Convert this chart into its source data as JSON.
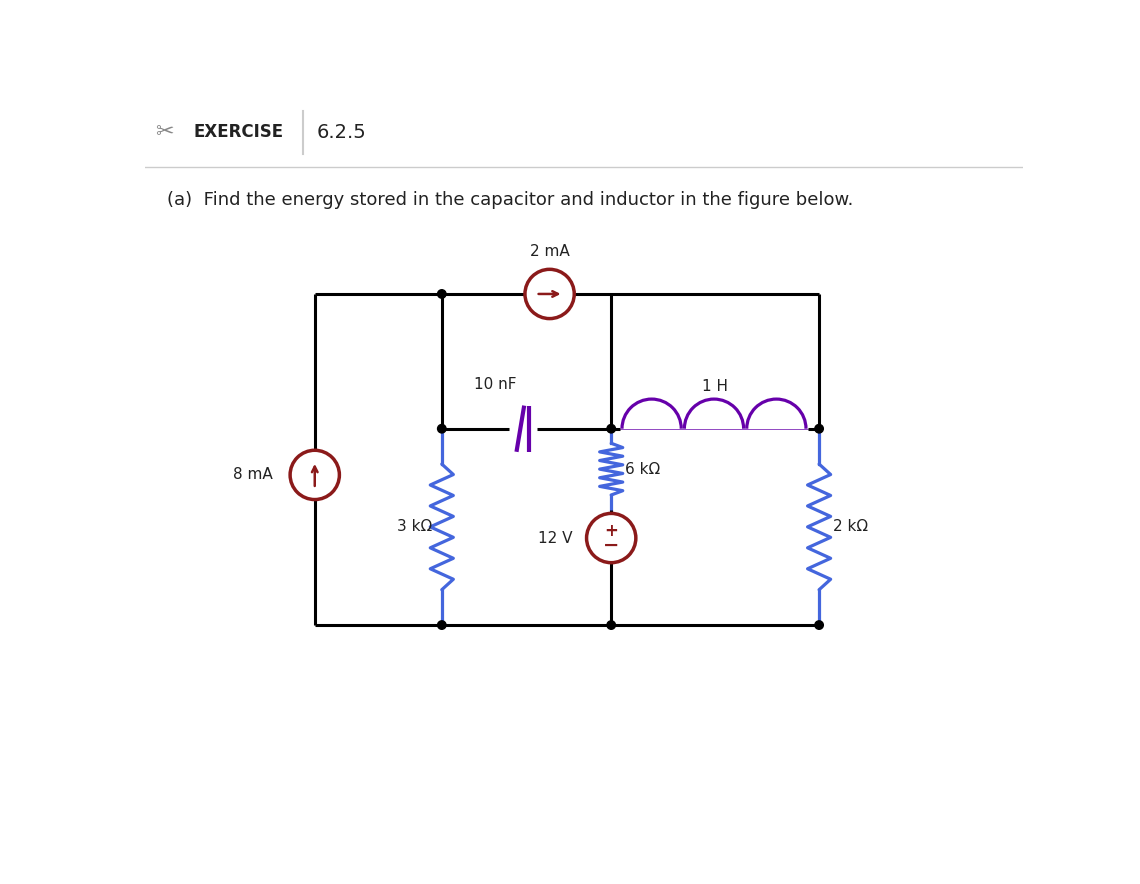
{
  "title_exercise": "EXERCISE",
  "title_number": "6.2.5",
  "subtitle": "(a)  Find the energy stored in the capacitor and inductor in the figure below.",
  "bg_color": "#ffffff",
  "text_color": "#000000",
  "wire_color": "#000000",
  "resistor_color": "#4466dd",
  "source_color_red": "#8B1A1A",
  "capacitor_color": "#6600aa",
  "inductor_color": "#6600aa",
  "current_source_8mA": "8 mA",
  "current_source_2mA": "2 mA",
  "voltage_source": "12 V",
  "R1_label": "3 kΩ",
  "R2_label": "6 kΩ",
  "R3_label": "2 kΩ",
  "C_label": "10 nF",
  "L_label": "1 H",
  "node_color": "#000000",
  "header_sep_color": "#cccccc",
  "lw_wire": 2.2,
  "lw_source": 2.5,
  "lw_resistor": 2.3,
  "lw_cap": 3.0,
  "lw_ind": 2.3
}
